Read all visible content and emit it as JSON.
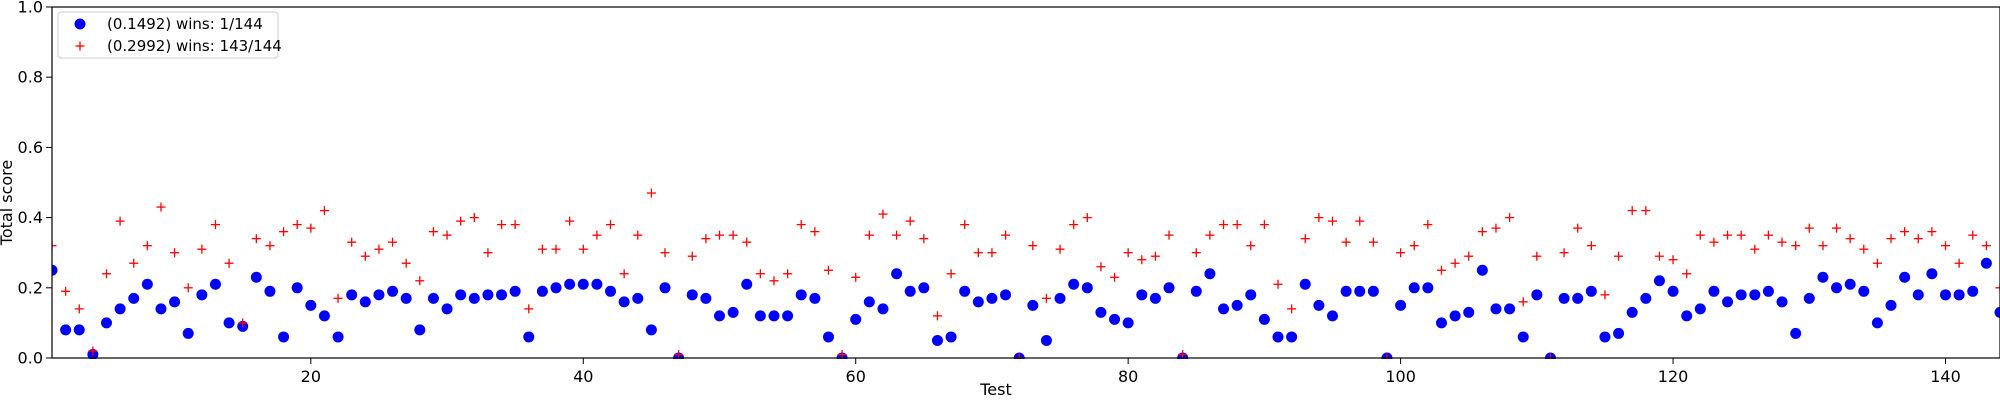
{
  "chart_data": {
    "type": "scatter",
    "title": "",
    "xlabel": "Test",
    "ylabel": "Total score",
    "xlim": [
      1,
      144
    ],
    "ylim": [
      0,
      1.0
    ],
    "xticks": [
      20,
      40,
      60,
      80,
      100,
      120,
      140
    ],
    "yticks": [
      0.0,
      0.2,
      0.4,
      0.6,
      0.8,
      1.0
    ],
    "ytick_labels": [
      "0.0",
      "0.2",
      "0.4",
      "0.6",
      "0.8",
      "1.0"
    ],
    "grid": false,
    "legend_position": "top-left",
    "series": [
      {
        "name": "(0.1492) wins: 1/144",
        "marker": "circle",
        "color": "#0000ff",
        "values": [
          0.25,
          0.08,
          0.08,
          0.01,
          0.1,
          0.14,
          0.17,
          0.21,
          0.14,
          0.16,
          0.07,
          0.18,
          0.21,
          0.1,
          0.09,
          0.23,
          0.19,
          0.06,
          0.2,
          0.15,
          0.12,
          0.06,
          0.18,
          0.16,
          0.18,
          0.19,
          0.17,
          0.08,
          0.17,
          0.14,
          0.18,
          0.17,
          0.18,
          0.18,
          0.19,
          0.06,
          0.19,
          0.2,
          0.21,
          0.21,
          0.21,
          0.19,
          0.16,
          0.17,
          0.08,
          0.2,
          0.0,
          0.18,
          0.17,
          0.12,
          0.13,
          0.21,
          0.12,
          0.12,
          0.12,
          0.18,
          0.17,
          0.06,
          0.0,
          0.11,
          0.16,
          0.14,
          0.24,
          0.19,
          0.2,
          0.05,
          0.06,
          0.19,
          0.16,
          0.17,
          0.18,
          0.0,
          0.15,
          0.05,
          0.17,
          0.21,
          0.2,
          0.13,
          0.11,
          0.1,
          0.18,
          0.17,
          0.2,
          0.0,
          0.19,
          0.24,
          0.14,
          0.15,
          0.18,
          0.11,
          0.06,
          0.06,
          0.21,
          0.15,
          0.12,
          0.19,
          0.19,
          0.19,
          0.0,
          0.15,
          0.2,
          0.2,
          0.1,
          0.12,
          0.13,
          0.25,
          0.14,
          0.14,
          0.06,
          0.18,
          0.0,
          0.17,
          0.17,
          0.19,
          0.06,
          0.07,
          0.13,
          0.17,
          0.22,
          0.19,
          0.12,
          0.14,
          0.19,
          0.16,
          0.18,
          0.18,
          0.19,
          0.16,
          0.07,
          0.17,
          0.23,
          0.2,
          0.21,
          0.19,
          0.1,
          0.15,
          0.23,
          0.18,
          0.24,
          0.18,
          0.18,
          0.19,
          0.27,
          0.13
        ]
      },
      {
        "name": "(0.2992) wins: 143/144",
        "marker": "plus",
        "color": "#ff0000",
        "values": [
          0.32,
          0.19,
          0.14,
          0.02,
          0.24,
          0.39,
          0.27,
          0.32,
          0.43,
          0.3,
          0.2,
          0.31,
          0.38,
          0.27,
          0.1,
          0.34,
          0.32,
          0.36,
          0.38,
          0.37,
          0.42,
          0.17,
          0.33,
          0.29,
          0.31,
          0.33,
          0.27,
          0.22,
          0.36,
          0.35,
          0.39,
          0.4,
          0.3,
          0.38,
          0.38,
          0.14,
          0.31,
          0.31,
          0.39,
          0.31,
          0.35,
          0.38,
          0.24,
          0.35,
          0.47,
          0.3,
          0.01,
          0.29,
          0.34,
          0.35,
          0.35,
          0.33,
          0.24,
          0.22,
          0.24,
          0.38,
          0.36,
          0.25,
          0.01,
          0.23,
          0.35,
          0.41,
          0.35,
          0.39,
          0.34,
          0.12,
          0.24,
          0.38,
          0.3,
          0.3,
          0.35,
          0.0,
          0.32,
          0.17,
          0.31,
          0.38,
          0.4,
          0.26,
          0.23,
          0.3,
          0.28,
          0.29,
          0.35,
          0.01,
          0.3,
          0.35,
          0.38,
          0.38,
          0.32,
          0.38,
          0.21,
          0.14,
          0.34,
          0.4,
          0.39,
          0.33,
          0.39,
          0.33,
          0.0,
          0.3,
          0.32,
          0.38,
          0.25,
          0.27,
          0.29,
          0.36,
          0.37,
          0.4,
          0.16,
          0.29,
          0.0,
          0.3,
          0.37,
          0.32,
          0.18,
          0.29,
          0.42,
          0.42,
          0.29,
          0.28,
          0.24,
          0.35,
          0.33,
          0.35,
          0.35,
          0.31,
          0.35,
          0.33,
          0.32,
          0.37,
          0.32,
          0.37,
          0.34,
          0.31,
          0.27,
          0.34,
          0.36,
          0.34,
          0.36,
          0.32,
          0.27,
          0.35,
          0.32,
          0.2
        ]
      }
    ]
  }
}
